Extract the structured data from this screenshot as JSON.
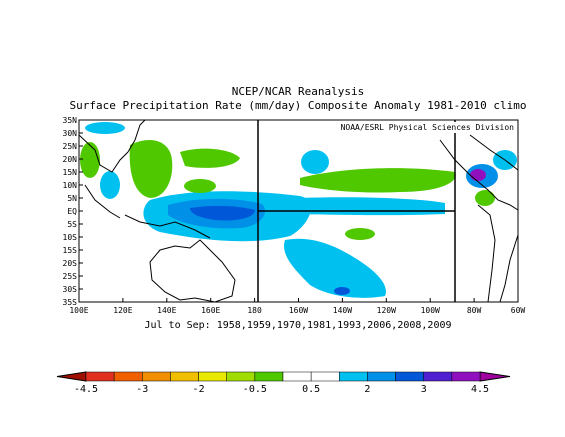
{
  "header": {
    "title": "NCEP/NCAR Reanalysis",
    "subtitle": "Surface Precipitation Rate (mm/day) Composite Anomaly 1981-2010 climo"
  },
  "credit": "NOAA/ESRL Physical Sciences Division",
  "lat_ticks": [
    "35N",
    "30N",
    "25N",
    "20N",
    "15N",
    "10N",
    "5N",
    "EQ",
    "5S",
    "10S",
    "15S",
    "20S",
    "25S",
    "30S",
    "35S"
  ],
  "lon_ticks": [
    "100E",
    "120E",
    "140E",
    "160E",
    "180",
    "160W",
    "140W",
    "120W",
    "100W",
    "80W",
    "60W"
  ],
  "caption": "Jul to Sep: 1958,1959,1970,1981,1993,2006,2008,2009",
  "colorbar": {
    "labels": [
      "-4.5",
      "-3",
      "-2",
      "-0.5",
      "0.5",
      "2",
      "3",
      "4.5"
    ],
    "colors": [
      "#e0301e",
      "#f06000",
      "#f09000",
      "#f0c000",
      "#e8e800",
      "#a0dc00",
      "#50c800",
      "#ffffff",
      "#ffffff",
      "#00c0f0",
      "#0090e8",
      "#0058d8",
      "#5020d0",
      "#9010c0"
    ],
    "low_color": "#a01000",
    "high_color": "#a000a0"
  }
}
